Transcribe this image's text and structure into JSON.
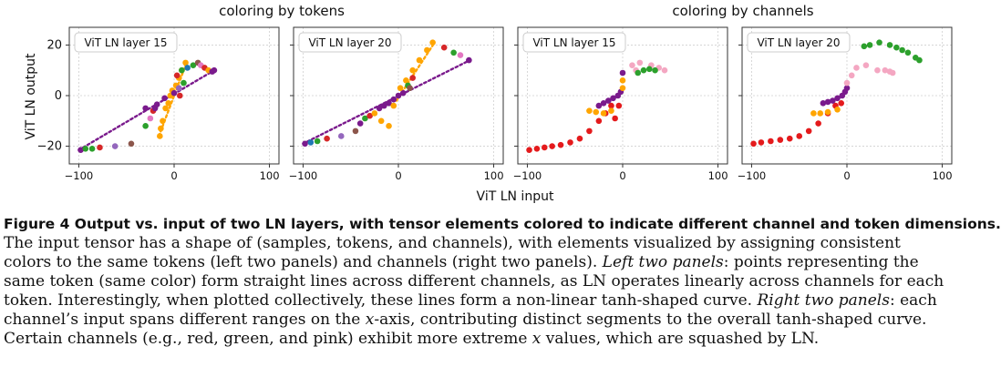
{
  "chart_data": [
    {
      "type": "scatter",
      "group_title": "coloring by tokens",
      "panel_label": "ViT LN layer 15",
      "xlim": [
        -110,
        110
      ],
      "ylim": [
        -27,
        27
      ],
      "xticks": [
        -100,
        0,
        100
      ],
      "yticks": [
        20,
        0,
        -20
      ],
      "xlabel": "ViT LN input",
      "ylabel": "ViT LN output",
      "grid": true,
      "points": [
        {
          "x": -98,
          "y": -21.5,
          "color": "#7a1a8c"
        },
        {
          "x": -93,
          "y": -21,
          "color": "#2ca02c"
        },
        {
          "x": -86,
          "y": -21,
          "color": "#2ca02c"
        },
        {
          "x": -78,
          "y": -20.5,
          "color": "#d62728"
        },
        {
          "x": -62,
          "y": -20,
          "color": "#9467bd"
        },
        {
          "x": -45,
          "y": -19,
          "color": "#8c564b"
        },
        {
          "x": -30,
          "y": -12,
          "color": "#2ca02c"
        },
        {
          "x": -25,
          "y": -9,
          "color": "#e377c2"
        },
        {
          "x": -22,
          "y": -6,
          "color": "#d62728"
        },
        {
          "x": -18,
          "y": -3.5,
          "color": "#7a1a8c"
        },
        {
          "x": -15,
          "y": -16,
          "color": "#ffa500"
        },
        {
          "x": -14,
          "y": -13,
          "color": "#ffa500"
        },
        {
          "x": -12,
          "y": -10,
          "color": "#ffa500"
        },
        {
          "x": -9,
          "y": -5,
          "color": "#ffa500"
        },
        {
          "x": -6,
          "y": -3,
          "color": "#ffa500"
        },
        {
          "x": -4,
          "y": 0,
          "color": "#ffa500"
        },
        {
          "x": -2,
          "y": 2,
          "color": "#ffa500"
        },
        {
          "x": 2,
          "y": 4,
          "color": "#ffa500"
        },
        {
          "x": 5,
          "y": 7,
          "color": "#ffa500"
        },
        {
          "x": 8,
          "y": 10,
          "color": "#ffa500"
        },
        {
          "x": 12,
          "y": 13,
          "color": "#ffa500"
        },
        {
          "x": 3,
          "y": 8,
          "color": "#d62728"
        },
        {
          "x": 8,
          "y": 10,
          "color": "#2ca02c"
        },
        {
          "x": 14,
          "y": 11,
          "color": "#1f77b4"
        },
        {
          "x": 20,
          "y": 12,
          "color": "#2ca02c"
        },
        {
          "x": 25,
          "y": 13,
          "color": "#8c564b"
        },
        {
          "x": 28,
          "y": 12,
          "color": "#e377c2"
        },
        {
          "x": 32,
          "y": 11,
          "color": "#d62728"
        },
        {
          "x": 36,
          "y": 10,
          "color": "#ffa500"
        },
        {
          "x": 40,
          "y": 9.5,
          "color": "#7a1a8c"
        },
        {
          "x": 42,
          "y": 10,
          "color": "#7a1a8c"
        },
        {
          "x": 10,
          "y": 5,
          "color": "#2ca02c"
        },
        {
          "x": 5,
          "y": 3,
          "color": "#9467bd"
        },
        {
          "x": -20,
          "y": -5,
          "color": "#7a1a8c"
        },
        {
          "x": -10,
          "y": -1,
          "color": "#7a1a8c"
        },
        {
          "x": 0,
          "y": 1,
          "color": "#7a1a8c"
        },
        {
          "x": 6,
          "y": 0,
          "color": "#d62728"
        },
        {
          "x": -30,
          "y": -5,
          "color": "#7a1a8c"
        }
      ],
      "dotted_lines": [
        {
          "color": "#7a1a8c",
          "x": [
            -100,
            42
          ],
          "y": [
            -21.5,
            10
          ]
        },
        {
          "color": "#ffa500",
          "x": [
            -16,
            13
          ],
          "y": [
            -16,
            13
          ]
        }
      ]
    },
    {
      "type": "scatter",
      "group_title": "coloring by tokens",
      "panel_label": "ViT LN layer 20",
      "xlim": [
        -110,
        110
      ],
      "ylim": [
        -27,
        27
      ],
      "xticks": [
        -100,
        0,
        100
      ],
      "yticks": [
        20,
        0,
        -20
      ],
      "xlabel": "ViT LN input",
      "ylabel": "ViT LN output",
      "grid": true,
      "points": [
        {
          "x": -98,
          "y": -19,
          "color": "#7a1a8c"
        },
        {
          "x": -92,
          "y": -18.5,
          "color": "#1f77b4"
        },
        {
          "x": -85,
          "y": -18,
          "color": "#2ca02c"
        },
        {
          "x": -75,
          "y": -17,
          "color": "#d62728"
        },
        {
          "x": -60,
          "y": -16,
          "color": "#9467bd"
        },
        {
          "x": -45,
          "y": -14,
          "color": "#8c564b"
        },
        {
          "x": -35,
          "y": -9,
          "color": "#2ca02c"
        },
        {
          "x": -30,
          "y": -8,
          "color": "#d62728"
        },
        {
          "x": -20,
          "y": -5,
          "color": "#7a1a8c"
        },
        {
          "x": -15,
          "y": -4,
          "color": "#7a1a8c"
        },
        {
          "x": -10,
          "y": -3,
          "color": "#7a1a8c"
        },
        {
          "x": -5,
          "y": -1.5,
          "color": "#7a1a8c"
        },
        {
          "x": 0,
          "y": 0,
          "color": "#7a1a8c"
        },
        {
          "x": 5,
          "y": 1,
          "color": "#7a1a8c"
        },
        {
          "x": -25,
          "y": -7,
          "color": "#ffa500"
        },
        {
          "x": -18,
          "y": -10,
          "color": "#ffa500"
        },
        {
          "x": -5,
          "y": -4,
          "color": "#ffa500"
        },
        {
          "x": 2,
          "y": 3,
          "color": "#ffa500"
        },
        {
          "x": 8,
          "y": 6,
          "color": "#ffa500"
        },
        {
          "x": 15,
          "y": 10,
          "color": "#ffa500"
        },
        {
          "x": 22,
          "y": 14,
          "color": "#ffa500"
        },
        {
          "x": 30,
          "y": 18,
          "color": "#ffa500"
        },
        {
          "x": 36,
          "y": 21,
          "color": "#ffa500"
        },
        {
          "x": 48,
          "y": 19,
          "color": "#d62728"
        },
        {
          "x": 58,
          "y": 17,
          "color": "#2ca02c"
        },
        {
          "x": 65,
          "y": 16,
          "color": "#e377c2"
        },
        {
          "x": 74,
          "y": 14,
          "color": "#7a1a8c"
        },
        {
          "x": 10,
          "y": 4,
          "color": "#2ca02c"
        },
        {
          "x": 15,
          "y": 7,
          "color": "#d62728"
        },
        {
          "x": 12,
          "y": 3,
          "color": "#8c564b"
        },
        {
          "x": -10,
          "y": -12,
          "color": "#ffa500"
        },
        {
          "x": -40,
          "y": -11,
          "color": "#7a1a8c"
        }
      ],
      "dotted_lines": [
        {
          "color": "#7a1a8c",
          "x": [
            -100,
            75
          ],
          "y": [
            -19,
            14
          ]
        },
        {
          "color": "#ffa500",
          "x": [
            -2,
            38
          ],
          "y": [
            -2,
            21
          ]
        }
      ]
    },
    {
      "type": "scatter",
      "group_title": "coloring by channels",
      "panel_label": "ViT LN layer 15",
      "xlim": [
        -110,
        110
      ],
      "ylim": [
        -27,
        27
      ],
      "xticks": [
        -100,
        0,
        100
      ],
      "yticks": [
        20,
        0,
        -20
      ],
      "xlabel": "ViT LN input",
      "ylabel": "ViT LN output",
      "grid": true,
      "points": [
        {
          "x": -98,
          "y": -21.5,
          "color": "#e41a1c"
        },
        {
          "x": -90,
          "y": -21,
          "color": "#e41a1c"
        },
        {
          "x": -82,
          "y": -20.5,
          "color": "#e41a1c"
        },
        {
          "x": -74,
          "y": -20,
          "color": "#e41a1c"
        },
        {
          "x": -65,
          "y": -19.5,
          "color": "#e41a1c"
        },
        {
          "x": -55,
          "y": -18.5,
          "color": "#e41a1c"
        },
        {
          "x": -45,
          "y": -17,
          "color": "#e41a1c"
        },
        {
          "x": -35,
          "y": -14,
          "color": "#e41a1c"
        },
        {
          "x": -25,
          "y": -10,
          "color": "#e41a1c"
        },
        {
          "x": -18,
          "y": -7,
          "color": "#e41a1c"
        },
        {
          "x": -12,
          "y": -4,
          "color": "#e41a1c"
        },
        {
          "x": -8,
          "y": -9,
          "color": "#e41a1c"
        },
        {
          "x": -4,
          "y": -4,
          "color": "#e41a1c"
        },
        {
          "x": -35,
          "y": -6,
          "color": "#ffa500"
        },
        {
          "x": -28,
          "y": -6.5,
          "color": "#ffa500"
        },
        {
          "x": -20,
          "y": -7,
          "color": "#ffa500"
        },
        {
          "x": -12,
          "y": -6,
          "color": "#ffa500"
        },
        {
          "x": -25,
          "y": -4,
          "color": "#7a1a8c"
        },
        {
          "x": -20,
          "y": -3,
          "color": "#7a1a8c"
        },
        {
          "x": -15,
          "y": -2,
          "color": "#7a1a8c"
        },
        {
          "x": -10,
          "y": -1,
          "color": "#7a1a8c"
        },
        {
          "x": -5,
          "y": 0,
          "color": "#7a1a8c"
        },
        {
          "x": -2,
          "y": 1.5,
          "color": "#7a1a8c"
        },
        {
          "x": 0,
          "y": 3,
          "color": "#ffa500"
        },
        {
          "x": 0,
          "y": 6,
          "color": "#ffa500"
        },
        {
          "x": 0,
          "y": 9,
          "color": "#7a1a8c"
        },
        {
          "x": 10,
          "y": 12,
          "color": "#f4a7c2"
        },
        {
          "x": 14,
          "y": 10,
          "color": "#f4a7c2"
        },
        {
          "x": 18,
          "y": 13,
          "color": "#f4a7c2"
        },
        {
          "x": 30,
          "y": 12,
          "color": "#f4a7c2"
        },
        {
          "x": 38,
          "y": 11,
          "color": "#f4a7c2"
        },
        {
          "x": 44,
          "y": 10,
          "color": "#f4a7c2"
        },
        {
          "x": 16,
          "y": 9,
          "color": "#2ca02c"
        },
        {
          "x": 22,
          "y": 10,
          "color": "#2ca02c"
        },
        {
          "x": 28,
          "y": 10.5,
          "color": "#2ca02c"
        },
        {
          "x": 34,
          "y": 10,
          "color": "#2ca02c"
        }
      ],
      "dotted_lines": []
    },
    {
      "type": "scatter",
      "group_title": "coloring by channels",
      "panel_label": "ViT LN layer 20",
      "xlim": [
        -110,
        110
      ],
      "ylim": [
        -27,
        27
      ],
      "xticks": [
        -100,
        0,
        100
      ],
      "yticks": [
        20,
        0,
        -20
      ],
      "xlabel": "ViT LN input",
      "ylabel": "ViT LN output",
      "grid": true,
      "points": [
        {
          "x": -98,
          "y": -19,
          "color": "#e41a1c"
        },
        {
          "x": -90,
          "y": -18.5,
          "color": "#e41a1c"
        },
        {
          "x": -80,
          "y": -18,
          "color": "#e41a1c"
        },
        {
          "x": -70,
          "y": -17.5,
          "color": "#e41a1c"
        },
        {
          "x": -60,
          "y": -17,
          "color": "#e41a1c"
        },
        {
          "x": -50,
          "y": -16,
          "color": "#e41a1c"
        },
        {
          "x": -40,
          "y": -14,
          "color": "#e41a1c"
        },
        {
          "x": -30,
          "y": -11,
          "color": "#e41a1c"
        },
        {
          "x": -20,
          "y": -7,
          "color": "#e41a1c"
        },
        {
          "x": -12,
          "y": -4,
          "color": "#e41a1c"
        },
        {
          "x": -6,
          "y": -3,
          "color": "#e41a1c"
        },
        {
          "x": -35,
          "y": -7,
          "color": "#ffa500"
        },
        {
          "x": -28,
          "y": -7,
          "color": "#ffa500"
        },
        {
          "x": -20,
          "y": -6.5,
          "color": "#ffa500"
        },
        {
          "x": -10,
          "y": -5.5,
          "color": "#ffa500"
        },
        {
          "x": -25,
          "y": -3,
          "color": "#7a1a8c"
        },
        {
          "x": -20,
          "y": -2.5,
          "color": "#7a1a8c"
        },
        {
          "x": -15,
          "y": -2,
          "color": "#7a1a8c"
        },
        {
          "x": -10,
          "y": -1,
          "color": "#7a1a8c"
        },
        {
          "x": -5,
          "y": 0,
          "color": "#7a1a8c"
        },
        {
          "x": -2,
          "y": 1.5,
          "color": "#7a1a8c"
        },
        {
          "x": 0,
          "y": 3,
          "color": "#7a1a8c"
        },
        {
          "x": 0,
          "y": 5,
          "color": "#f4a7c2"
        },
        {
          "x": 5,
          "y": 8,
          "color": "#f4a7c2"
        },
        {
          "x": 10,
          "y": 11,
          "color": "#f4a7c2"
        },
        {
          "x": 20,
          "y": 12,
          "color": "#f4a7c2"
        },
        {
          "x": 32,
          "y": 10,
          "color": "#f4a7c2"
        },
        {
          "x": 40,
          "y": 10,
          "color": "#f4a7c2"
        },
        {
          "x": 45,
          "y": 9.5,
          "color": "#f4a7c2"
        },
        {
          "x": 48,
          "y": 9,
          "color": "#f4a7c2"
        },
        {
          "x": 18,
          "y": 19.5,
          "color": "#2ca02c"
        },
        {
          "x": 24,
          "y": 20,
          "color": "#2ca02c"
        },
        {
          "x": 34,
          "y": 21,
          "color": "#2ca02c"
        },
        {
          "x": 45,
          "y": 20,
          "color": "#2ca02c"
        },
        {
          "x": 52,
          "y": 19,
          "color": "#2ca02c"
        },
        {
          "x": 58,
          "y": 18,
          "color": "#2ca02c"
        },
        {
          "x": 64,
          "y": 17,
          "color": "#2ca02c"
        },
        {
          "x": 72,
          "y": 15,
          "color": "#2ca02c"
        },
        {
          "x": 76,
          "y": 14,
          "color": "#2ca02c"
        }
      ],
      "dotted_lines": []
    }
  ],
  "group_titles": [
    "coloring by tokens",
    "coloring by channels"
  ],
  "shared_xlabel": "ViT LN input",
  "shared_ylabel": "ViT LN output",
  "caption": {
    "title": "Figure 4  Output vs. input of two LN layers, with tensor elements colored to indicate different channel and token dimensions.",
    "line1": "The input tensor has a shape of (samples, tokens, and channels), with elements visualized by assigning consistent",
    "line2a": "colors to the same tokens (left two panels) and channels (right two panels). ",
    "line2_em": "Left two panels",
    "line2b": ": points representing the",
    "line3": "same token (same color) form straight lines across different channels, as LN operates linearly across channels for each",
    "line4a": "token. Interestingly, when plotted collectively, these lines form a non-linear tanh-shaped curve. ",
    "line4_em": "Right two panels",
    "line4b": ": each",
    "line5a": "channel’s input spans different ranges on the ",
    "line5_em": "x",
    "line5b": "-axis, contributing distinct segments to the overall tanh-shaped curve.",
    "line6a": "Certain channels (e.g., red, green, and pink) exhibit more extreme ",
    "line6_em": "x",
    "line6b": " values, which are squashed by LN."
  }
}
